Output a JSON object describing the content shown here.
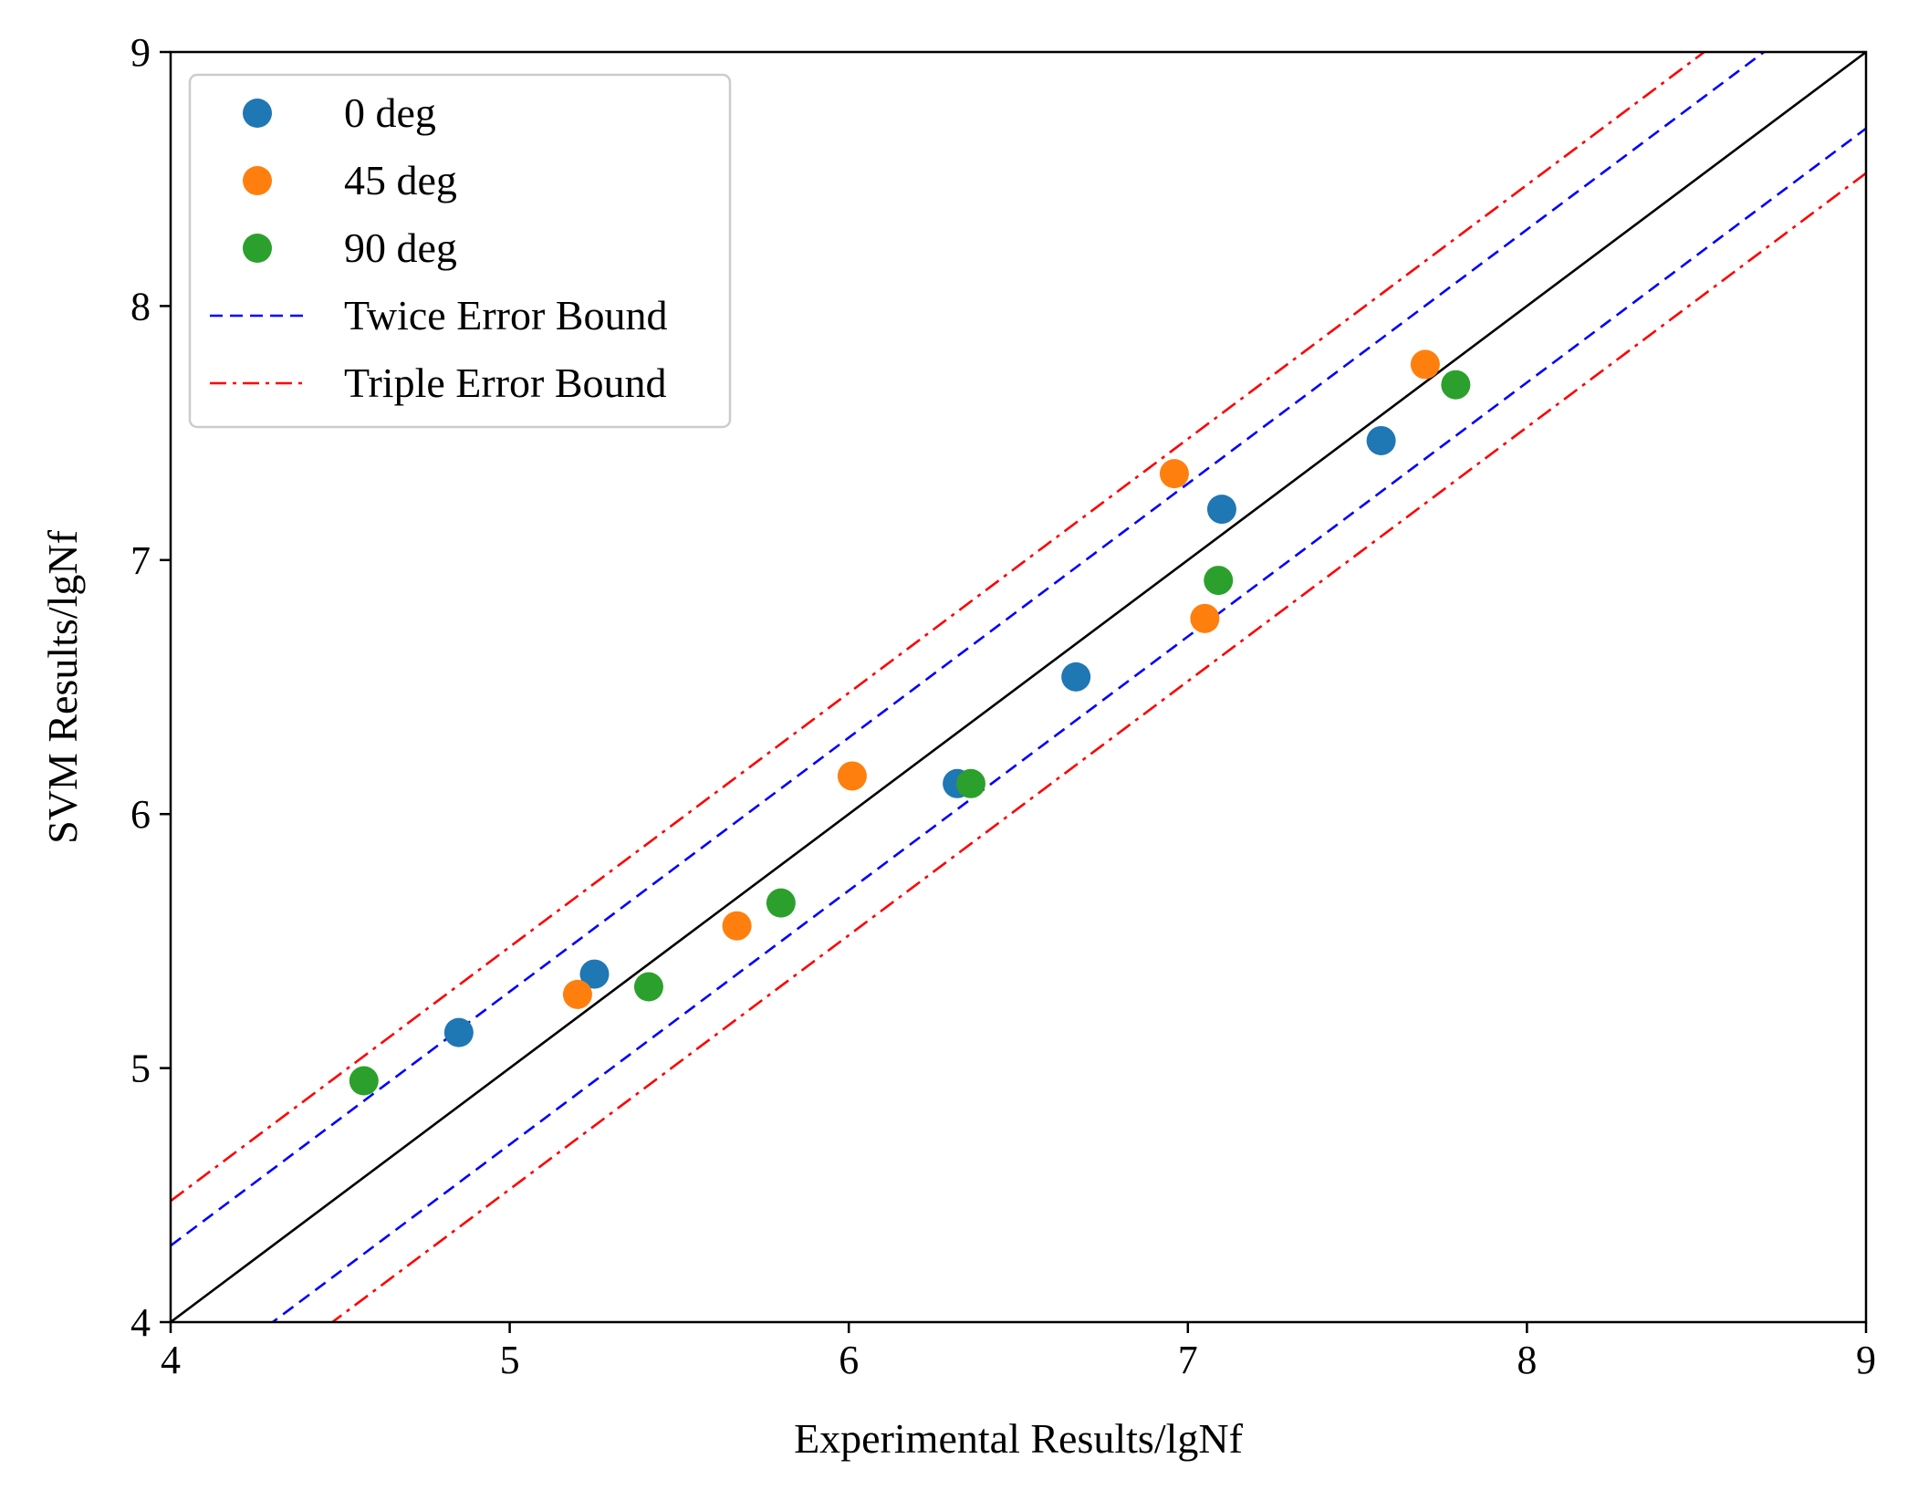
{
  "chart_data": {
    "type": "scatter",
    "title": "",
    "xlabel": "Experimental Results/lgNf",
    "ylabel": "SVM Results/lgNf",
    "xlim": [
      4,
      9
    ],
    "ylim": [
      4,
      9
    ],
    "xticks": [
      "4",
      "5",
      "6",
      "7",
      "8",
      "9"
    ],
    "yticks": [
      "4",
      "5",
      "6",
      "7",
      "8",
      "9"
    ],
    "grid": false,
    "legend_position": "top-left",
    "series": [
      {
        "name": "0 deg",
        "color": "#1f77b4",
        "points": [
          [
            4.85,
            5.14
          ],
          [
            5.25,
            5.37
          ],
          [
            6.32,
            6.12
          ],
          [
            6.67,
            6.54
          ],
          [
            7.1,
            7.2
          ],
          [
            7.57,
            7.47
          ]
        ]
      },
      {
        "name": "45 deg",
        "color": "#ff7f0e",
        "points": [
          [
            5.2,
            5.29
          ],
          [
            5.67,
            5.56
          ],
          [
            6.01,
            6.15
          ],
          [
            6.96,
            7.34
          ],
          [
            7.05,
            6.77
          ],
          [
            7.7,
            7.77
          ]
        ]
      },
      {
        "name": "90 deg",
        "color": "#2ca02c",
        "points": [
          [
            4.57,
            4.95
          ],
          [
            5.41,
            5.32
          ],
          [
            5.8,
            5.65
          ],
          [
            6.36,
            6.12
          ],
          [
            7.09,
            6.92
          ],
          [
            7.79,
            7.69
          ]
        ]
      }
    ],
    "reference_lines": [
      {
        "name": "Twice Error Bound",
        "color": "#0000ff",
        "style": "dashed",
        "offsets": [
          0.301,
          -0.301
        ]
      },
      {
        "name": "Triple Error Bound",
        "color": "#ff0000",
        "style": "dashdot",
        "offsets": [
          0.477,
          -0.477
        ]
      }
    ],
    "identity_line": {
      "color": "#000000",
      "style": "solid"
    }
  }
}
